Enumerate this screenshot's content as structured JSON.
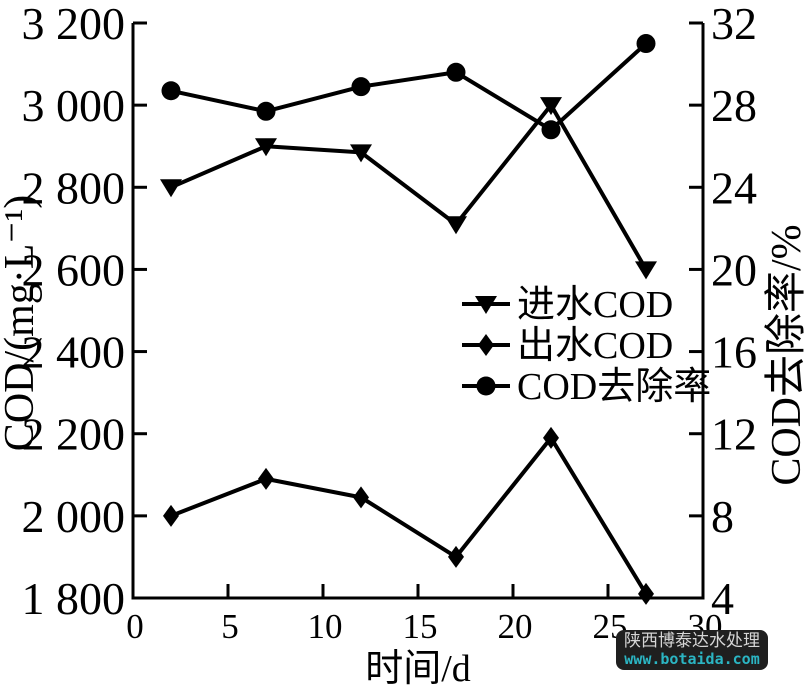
{
  "watermark": {
    "line1": "陕西博泰达水处理",
    "line2": "www.botaida.com",
    "bg_color": "#1f1f1f",
    "line1_color": "#d6d6d6",
    "line2_color": "#2bb5c3"
  },
  "chart_data": {
    "type": "line",
    "title": "",
    "line_color": "#000000",
    "grid": false,
    "x": [
      2,
      7,
      12,
      17,
      22,
      27
    ],
    "series": [
      {
        "name": "进水COD",
        "axis": "left",
        "marker": "triangle-down",
        "color": "#000000",
        "values": [
          2800,
          2900,
          2885,
          2710,
          3000,
          2600
        ]
      },
      {
        "name": "出水COD",
        "axis": "left",
        "marker": "diamond",
        "color": "#000000",
        "values": [
          2000,
          2090,
          2045,
          1900,
          2190,
          1810
        ]
      },
      {
        "name": "COD去除率",
        "axis": "right",
        "marker": "circle",
        "color": "#000000",
        "values": [
          28.7,
          27.7,
          28.9,
          29.6,
          26.8,
          31.0
        ]
      }
    ],
    "x_axis": {
      "label": "时间/d",
      "min": 0,
      "max": 30,
      "ticks": [
        0,
        5,
        10,
        15,
        20,
        25,
        30
      ],
      "tick_labels": [
        "0",
        "5",
        "10",
        "15",
        "20",
        "25",
        "30"
      ]
    },
    "left_axis": {
      "label": "COD/(mg·L⁻¹)",
      "min": 1800,
      "max": 3200,
      "ticks": [
        3200,
        3000,
        2800,
        2600,
        2400,
        2200,
        2000,
        1800
      ],
      "tick_labels": [
        "3 200",
        "3 000",
        "2 800",
        "2 600",
        "2 400",
        "2 200",
        "2 000",
        "1 800"
      ]
    },
    "right_axis": {
      "label": "COD去除率/%",
      "min": 4,
      "max": 32,
      "ticks": [
        32,
        28,
        24,
        20,
        16,
        12,
        8,
        4
      ],
      "tick_labels": [
        "32",
        "28",
        "24",
        "20",
        "16",
        "12",
        "8",
        "4"
      ]
    },
    "legend": {
      "position": "center-right",
      "entries": [
        "进水COD",
        "出水COD",
        "COD去除率"
      ]
    }
  }
}
